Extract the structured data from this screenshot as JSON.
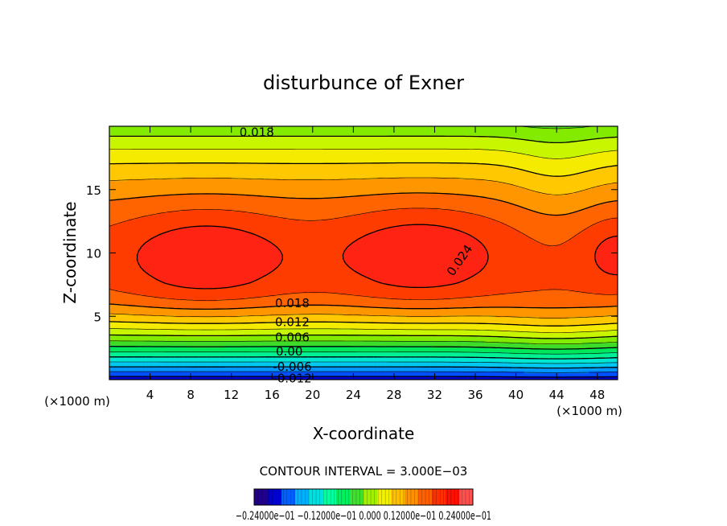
{
  "chart_data": {
    "type": "heatmap",
    "title": "disturbunce of Exner",
    "xlabel": "X-coordinate",
    "ylabel": "Z-coordinate",
    "x_unit": "(×1000 m)",
    "y_unit": "(×1000 m)",
    "xlim": [
      0,
      50
    ],
    "ylim": [
      0,
      20
    ],
    "x_ticks": [
      "4",
      "8",
      "12",
      "16",
      "20",
      "24",
      "28",
      "32",
      "36",
      "40",
      "44",
      "48"
    ],
    "x_tick_values": [
      4,
      8,
      12,
      16,
      20,
      24,
      28,
      32,
      36,
      40,
      44,
      48
    ],
    "y_ticks": [
      "5",
      "10",
      "15"
    ],
    "y_tick_values": [
      5,
      10,
      15
    ],
    "contour_interval_text": "CONTOUR INTERVAL = 3.000E−03",
    "contour_interval": 0.003,
    "contour_labels": [
      {
        "text": "0.018",
        "x": 14.5,
        "z": 19.5,
        "rotate": 0
      },
      {
        "text": "0.024",
        "x": 34.5,
        "z": 9.4,
        "rotate": -55
      },
      {
        "text": "0.018",
        "x": 18,
        "z": 6.0,
        "rotate": 0
      },
      {
        "text": "0.012",
        "x": 18,
        "z": 4.5,
        "rotate": 0
      },
      {
        "text": "0.006",
        "x": 18,
        "z": 3.3,
        "rotate": 0
      },
      {
        "text": "0.00",
        "x": 17.7,
        "z": 2.2,
        "rotate": 0
      },
      {
        "text": "-0.006",
        "x": 18,
        "z": 1.0,
        "rotate": 0
      },
      {
        "text": "-0.012",
        "x": 18,
        "z": 0.05,
        "rotate": 0
      }
    ],
    "field": {
      "surface_value": -0.02,
      "max_value": 0.027,
      "maxima": [
        {
          "x": 9.5,
          "z": 9.7,
          "value": 0.027
        },
        {
          "x": 30.5,
          "z": 9.9,
          "value": 0.027
        }
      ],
      "min_at_top_value": 0.018
    },
    "colorbar": {
      "min": -0.024,
      "max": 0.024,
      "tick_text": "−0.24000e−01  −0.12000e−01  0.000  0.12000e−01  0.24000e−01",
      "colors": [
        "#20008a",
        "#0000d0",
        "#0060ff",
        "#00b0ff",
        "#00e0e0",
        "#00ffa0",
        "#00f060",
        "#40e030",
        "#a0f000",
        "#f0f000",
        "#ffc000",
        "#ff9000",
        "#ff6000",
        "#ff3000",
        "#ff1000",
        "#ff5050"
      ]
    }
  }
}
